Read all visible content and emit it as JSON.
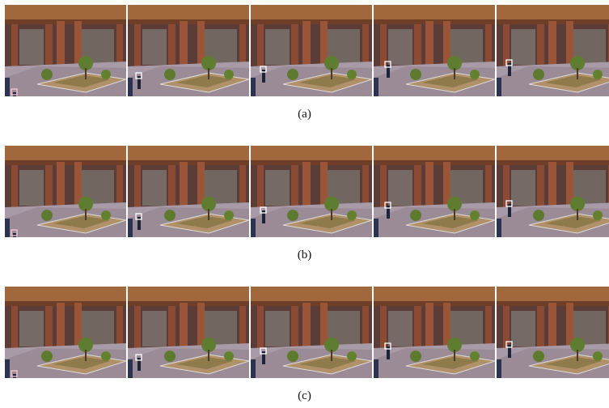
{
  "figure": {
    "rows": [
      {
        "caption": "(a)"
      },
      {
        "caption": "(b)"
      },
      {
        "caption": "(c)"
      }
    ]
  }
}
